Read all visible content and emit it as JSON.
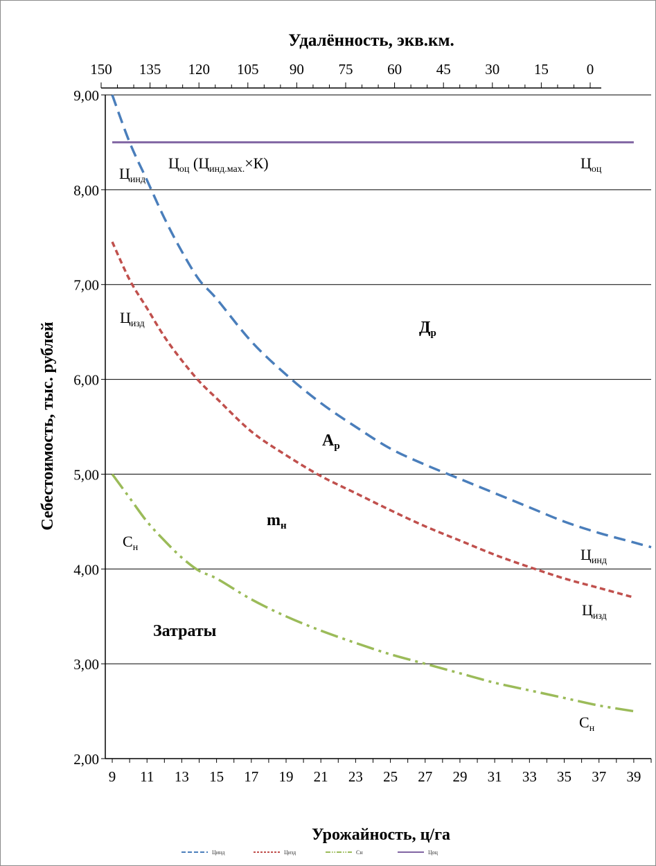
{
  "chart_data": {
    "type": "line",
    "xlabel": "Урожайность, ц/га",
    "ylabel": "Себестоимость, тыс. рублей",
    "x2label": "Удалённость, экв.км.",
    "ylim": [
      2,
      9
    ],
    "xlim": [
      8.6,
      40
    ],
    "x_ticks": [
      "9",
      "11",
      "13",
      "15",
      "17",
      "19",
      "21",
      "23",
      "25",
      "27",
      "29",
      "31",
      "33",
      "35",
      "37",
      "39"
    ],
    "y_ticks": [
      "2,00",
      "3,00",
      "4,00",
      "5,00",
      "6,00",
      "7,00",
      "8,00",
      "9,00"
    ],
    "x2_ticks": [
      "150",
      "135",
      "120",
      "105",
      "90",
      "75",
      "60",
      "45",
      "30",
      "15",
      "0"
    ],
    "grid": "horizontal",
    "legend_position": "bottom",
    "series": [
      {
        "name": "Цинд",
        "color": "#4a7ebb",
        "style": "dash",
        "x": [
          9,
          10,
          11,
          12,
          13,
          14,
          15,
          17,
          19,
          21,
          23,
          25,
          27,
          29,
          31,
          33,
          35,
          37,
          39,
          40
        ],
        "y": [
          9.0,
          8.5,
          8.1,
          7.7,
          7.35,
          7.05,
          6.85,
          6.4,
          6.05,
          5.75,
          5.5,
          5.27,
          5.1,
          4.95,
          4.8,
          4.65,
          4.5,
          4.38,
          4.28,
          4.23
        ]
      },
      {
        "name": "Цизд",
        "color": "#c0504d",
        "style": "short-dash",
        "x": [
          9,
          10,
          11,
          12,
          13,
          14,
          15,
          17,
          19,
          21,
          23,
          25,
          27,
          29,
          31,
          33,
          35,
          37,
          39
        ],
        "y": [
          7.45,
          7.05,
          6.75,
          6.45,
          6.2,
          5.98,
          5.8,
          5.45,
          5.2,
          4.98,
          4.8,
          4.62,
          4.45,
          4.3,
          4.15,
          4.02,
          3.9,
          3.8,
          3.7
        ]
      },
      {
        "name": "Сн",
        "color": "#9bbb59",
        "style": "dash-dot-dot",
        "x": [
          9,
          10,
          11,
          12,
          13,
          14,
          15,
          17,
          19,
          21,
          23,
          25,
          27,
          29,
          31,
          33,
          35,
          37,
          39
        ],
        "y": [
          5.0,
          4.75,
          4.5,
          4.3,
          4.12,
          3.98,
          3.9,
          3.68,
          3.5,
          3.35,
          3.22,
          3.1,
          3.0,
          2.9,
          2.8,
          2.72,
          2.64,
          2.56,
          2.5
        ]
      },
      {
        "name": "Цоц",
        "color": "#8064a2",
        "style": "solid",
        "x": [
          9,
          39
        ],
        "y": [
          8.5,
          8.5
        ]
      }
    ]
  },
  "annotations": {
    "c_oc_main": "Ц",
    "c_oc_main_sub": "оц",
    "c_oc_paren_open": " (Ц",
    "c_oc_paren_sub": "инд.мах.",
    "c_oc_paren_close": "×К)",
    "c_oc_right": "Ц",
    "c_oc_right_sub": "оц",
    "c_ind_left": "Ц",
    "c_ind_left_sub": "инд",
    "c_izd_left": "Ц",
    "c_izd_left_sub": "изд",
    "d_r": "Д",
    "d_r_sub": "р",
    "a_r": "А",
    "a_r_sub": "р",
    "m_n": "m",
    "m_n_sub": "н",
    "s_n_left": "С",
    "s_n_left_sub": "н",
    "c_ind_right": "Ц",
    "c_ind_right_sub": "инд",
    "c_izd_right": "Ц",
    "c_izd_right_sub": "изд",
    "zatraty": "Затраты",
    "s_n_right": "С",
    "s_n_right_sub": "н"
  }
}
